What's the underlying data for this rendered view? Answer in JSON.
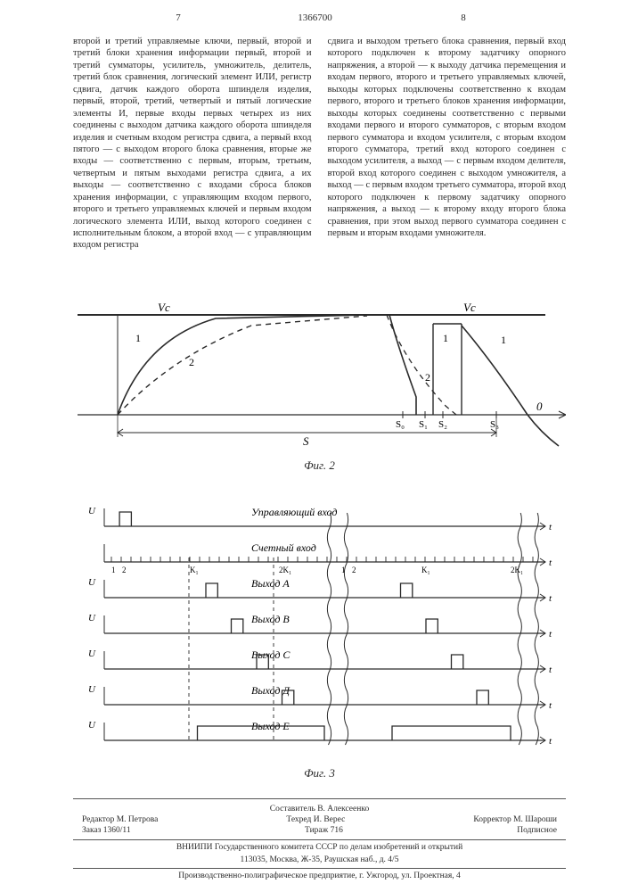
{
  "doc_id": "1366700",
  "page_left": "7",
  "page_right": "8",
  "col_left_text": "второй и третий управляемые ключи, первый, второй и третий блоки хранения информации первый, второй и третий сумматоры, усилитель, умножитель, делитель, третий блок сравнения, логический элемент ИЛИ, регистр сдвига, датчик каждого оборота шпинделя изделия, первый, второй, третий, четвертый и пятый логические элементы И, первые входы первых четырех из них соединены с выходом датчика каждого оборота шпинделя изделия и счетным входом регистра сдвига, а первый вход пятого — с выходом второго блока сравнения, вторые же входы — соответственно с первым, вторым, третьим, четвертым и пятым выходами регистра сдвига, а их выходы — соответственно с входами сброса блоков хранения информации, с управляющим входом первого, второго и третьего управляемых ключей и первым входом логического элемента ИЛИ, выход которого соединен с исполнительным блоком, а второй вход — с управляющим входом регистра",
  "col_right_text": "сдвига и выходом третьего блока сравнения, первый вход которого подключен к второму задатчику опорного напряжения, а второй — к выходу датчика перемещения и входам первого, второго и третьего управляемых ключей, выходы которых подключены соответственно к входам первого, второго и третьего блоков хранения информации, выходы которых соединены соответственно с первыми входами первого и второго сумматоров, с вторым входом первого сумматора и входом усилителя, с вторым входом второго сумматора, третий вход которого соединен с выходом усилителя, а выход — с первым входом делителя, второй вход которого соединен с выходом умножителя, а выход — с первым входом третьего сумматора, второй вход которого подключен к первому задатчику опорного напряжения, а выход — к второму входу второго блока сравнения, при этом выход первого сумматора соединен с первым и вторым входами умножителя.",
  "line_markers": {
    "l10": "10",
    "l15": "15"
  },
  "fig2": {
    "caption": "Фиг. 2",
    "labels": {
      "vc_left": "Vc",
      "vc_right": "Vc",
      "curve1": "1",
      "curve2": "2",
      "S": "S",
      "S0": "S₀",
      "S1": "S₁",
      "S2": "S₂",
      "S3": "S₃",
      "zero": "0"
    },
    "colors": {
      "line": "#2a2a2a",
      "bg": "#ffffff"
    },
    "line_width": 1.4,
    "dash": "5,4"
  },
  "fig3": {
    "caption": "Фиг. 3",
    "rows": [
      {
        "label_left": "U",
        "label_text": "Управляющий вход",
        "right": "t",
        "pulses": [
          [
            18,
            32
          ]
        ]
      },
      {
        "label_left": "",
        "label_text": "Счетный вход",
        "right": "t",
        "ticks": true,
        "tick_labels": [
          "1",
          "2",
          "K₁",
          "2K₁",
          "1",
          "2",
          "K₁",
          "2K₁"
        ]
      },
      {
        "label_left": "U",
        "label_text": "Выход А",
        "right": "t",
        "pulses": [
          [
            120,
            134
          ],
          [
            350,
            364
          ]
        ]
      },
      {
        "label_left": "U",
        "label_text": "Выход В",
        "right": "t",
        "pulses": [
          [
            150,
            164
          ],
          [
            380,
            394
          ]
        ]
      },
      {
        "label_left": "U",
        "label_text": "Выход С",
        "right": "t",
        "pulses": [
          [
            180,
            194
          ],
          [
            410,
            424
          ]
        ]
      },
      {
        "label_left": "U",
        "label_text": "Выход Д",
        "right": "t",
        "pulses": [
          [
            210,
            224
          ],
          [
            440,
            454
          ]
        ]
      },
      {
        "label_left": "U",
        "label_text": "Выход Е",
        "right": "t",
        "pulses": [
          [
            110,
            260
          ],
          [
            340,
            480
          ]
        ]
      }
    ],
    "break_positions": [
      270,
      290,
      495,
      515
    ],
    "colors": {
      "line": "#2a2a2a"
    }
  },
  "footer": {
    "compiler": "Составитель В. Алексеенко",
    "editor": "Редактор М. Петрова",
    "tech": "Техред И. Верес",
    "corrector": "Корректор М. Шароши",
    "order": "Заказ 1360/11",
    "tirage": "Тираж 716",
    "signed": "Подписное",
    "org": "ВНИИПИ Государственного комитета СССР по делам изобретений и открытий",
    "addr": "113035, Москва, Ж-35, Раушская наб., д. 4/5",
    "print": "Производственно-полиграфическое предприятие, г. Ужгород, ул. Проектная, 4"
  }
}
